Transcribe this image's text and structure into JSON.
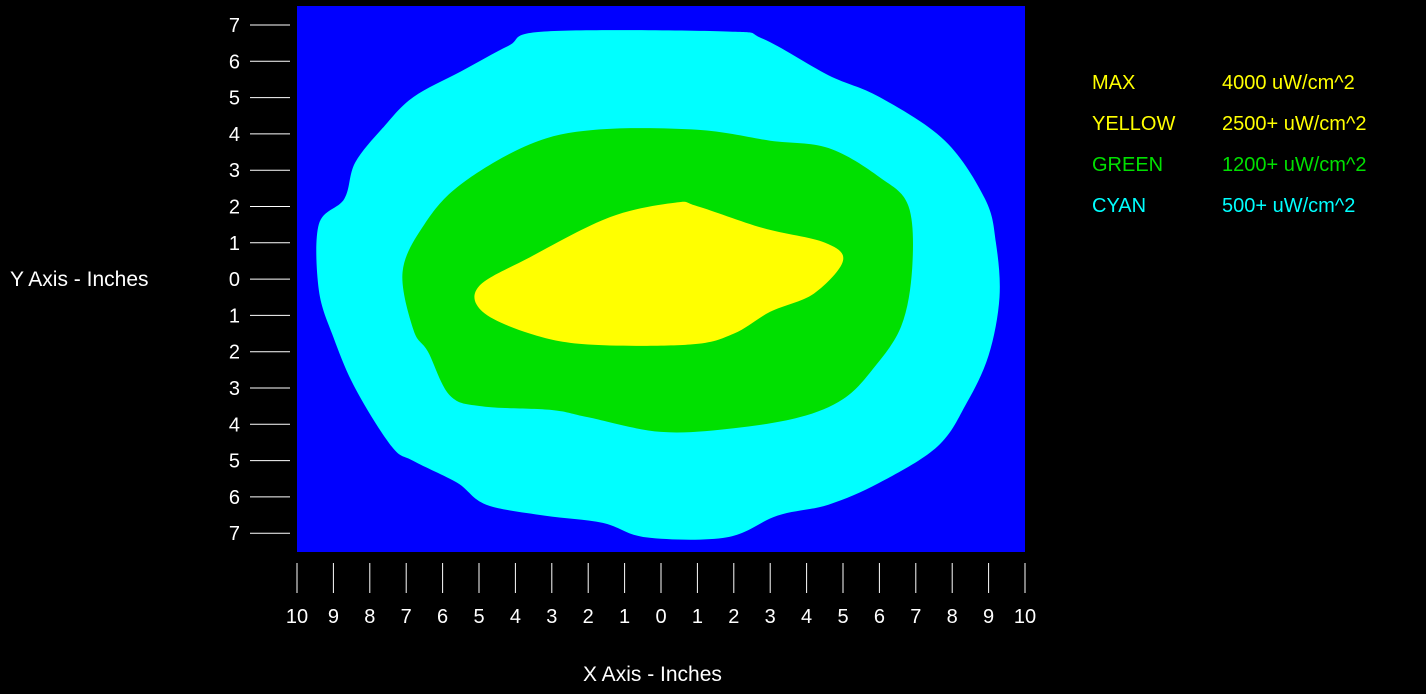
{
  "chart_data": {
    "type": "heatmap",
    "title": "",
    "xlabel": "X Axis - Inches",
    "ylabel": "Y Axis - Inches",
    "xlim": [
      -10,
      10
    ],
    "ylim": [
      -7.5,
      7.5
    ],
    "x_tick_labels": [
      "10",
      "9",
      "8",
      "7",
      "6",
      "5",
      "4",
      "3",
      "2",
      "1",
      "0",
      "1",
      "2",
      "3",
      "4",
      "5",
      "6",
      "7",
      "8",
      "9",
      "10"
    ],
    "y_tick_labels": [
      "7",
      "6",
      "5",
      "4",
      "3",
      "2",
      "1",
      "0",
      "1",
      "2",
      "3",
      "4",
      "5",
      "6",
      "7"
    ],
    "background_color": "#0000ff",
    "legend": [
      {
        "name": "MAX",
        "value": "4000 uW/cm^2",
        "color": "#ffff00"
      },
      {
        "name": "YELLOW",
        "value": "2500+ uW/cm^2",
        "color": "#ffff00"
      },
      {
        "name": "GREEN",
        "value": "1200+ uW/cm^2",
        "color": "#00e000"
      },
      {
        "name": "CYAN",
        "value": "500+ uW/cm^2",
        "color": "#00ffff"
      }
    ],
    "contours": [
      {
        "level": "CYAN",
        "color": "#00ffff",
        "points": [
          [
            -3.2,
            6.8
          ],
          [
            -4.2,
            6.4
          ],
          [
            -5.5,
            5.7
          ],
          [
            -6.8,
            5.0
          ],
          [
            -7.6,
            4.2
          ],
          [
            -8.4,
            3.2
          ],
          [
            -8.7,
            2.2
          ],
          [
            -9.4,
            1.5
          ],
          [
            -9.4,
            -0.3
          ],
          [
            -9.0,
            -1.6
          ],
          [
            -8.4,
            -3.0
          ],
          [
            -7.4,
            -4.6
          ],
          [
            -6.8,
            -5.0
          ],
          [
            -5.6,
            -5.6
          ],
          [
            -4.8,
            -6.2
          ],
          [
            -3.2,
            -6.5
          ],
          [
            -1.6,
            -6.7
          ],
          [
            -0.4,
            -7.1
          ],
          [
            1.8,
            -7.1
          ],
          [
            3.2,
            -6.5
          ],
          [
            4.6,
            -6.2
          ],
          [
            6.0,
            -5.6
          ],
          [
            7.6,
            -4.6
          ],
          [
            8.4,
            -3.4
          ],
          [
            9.0,
            -2.1
          ],
          [
            9.3,
            -0.5
          ],
          [
            9.2,
            1.0
          ],
          [
            8.9,
            2.2
          ],
          [
            7.8,
            3.8
          ],
          [
            6.0,
            5.0
          ],
          [
            4.6,
            5.6
          ],
          [
            2.8,
            6.6
          ],
          [
            1.8,
            6.8
          ]
        ]
      },
      {
        "level": "GREEN",
        "color": "#00e000",
        "points": [
          [
            -1.8,
            4.1
          ],
          [
            -3.6,
            3.7
          ],
          [
            -5.5,
            2.6
          ],
          [
            -6.5,
            1.5
          ],
          [
            -7.1,
            0.2
          ],
          [
            -6.8,
            -1.4
          ],
          [
            -6.4,
            -2.0
          ],
          [
            -5.8,
            -3.2
          ],
          [
            -4.9,
            -3.5
          ],
          [
            -3.0,
            -3.6
          ],
          [
            -2.0,
            -3.8
          ],
          [
            0.0,
            -4.2
          ],
          [
            2.0,
            -4.1
          ],
          [
            3.8,
            -3.8
          ],
          [
            5.0,
            -3.3
          ],
          [
            5.8,
            -2.5
          ],
          [
            6.6,
            -1.3
          ],
          [
            6.9,
            0.3
          ],
          [
            6.8,
            2.0
          ],
          [
            6.0,
            2.8
          ],
          [
            4.6,
            3.6
          ],
          [
            3.0,
            3.8
          ],
          [
            1.0,
            4.1
          ]
        ]
      },
      {
        "level": "YELLOW",
        "color": "#ffff00",
        "points": [
          [
            0.4,
            2.1
          ],
          [
            -1.4,
            1.7
          ],
          [
            -3.6,
            0.6
          ],
          [
            -5.0,
            -0.2
          ],
          [
            -4.9,
            -0.9
          ],
          [
            -3.6,
            -1.5
          ],
          [
            -2.0,
            -1.8
          ],
          [
            0.8,
            -1.8
          ],
          [
            2.0,
            -1.5
          ],
          [
            3.0,
            -0.9
          ],
          [
            4.2,
            -0.4
          ],
          [
            5.0,
            0.5
          ],
          [
            4.5,
            1.0
          ],
          [
            2.8,
            1.4
          ],
          [
            1.0,
            2.0
          ]
        ]
      }
    ]
  }
}
